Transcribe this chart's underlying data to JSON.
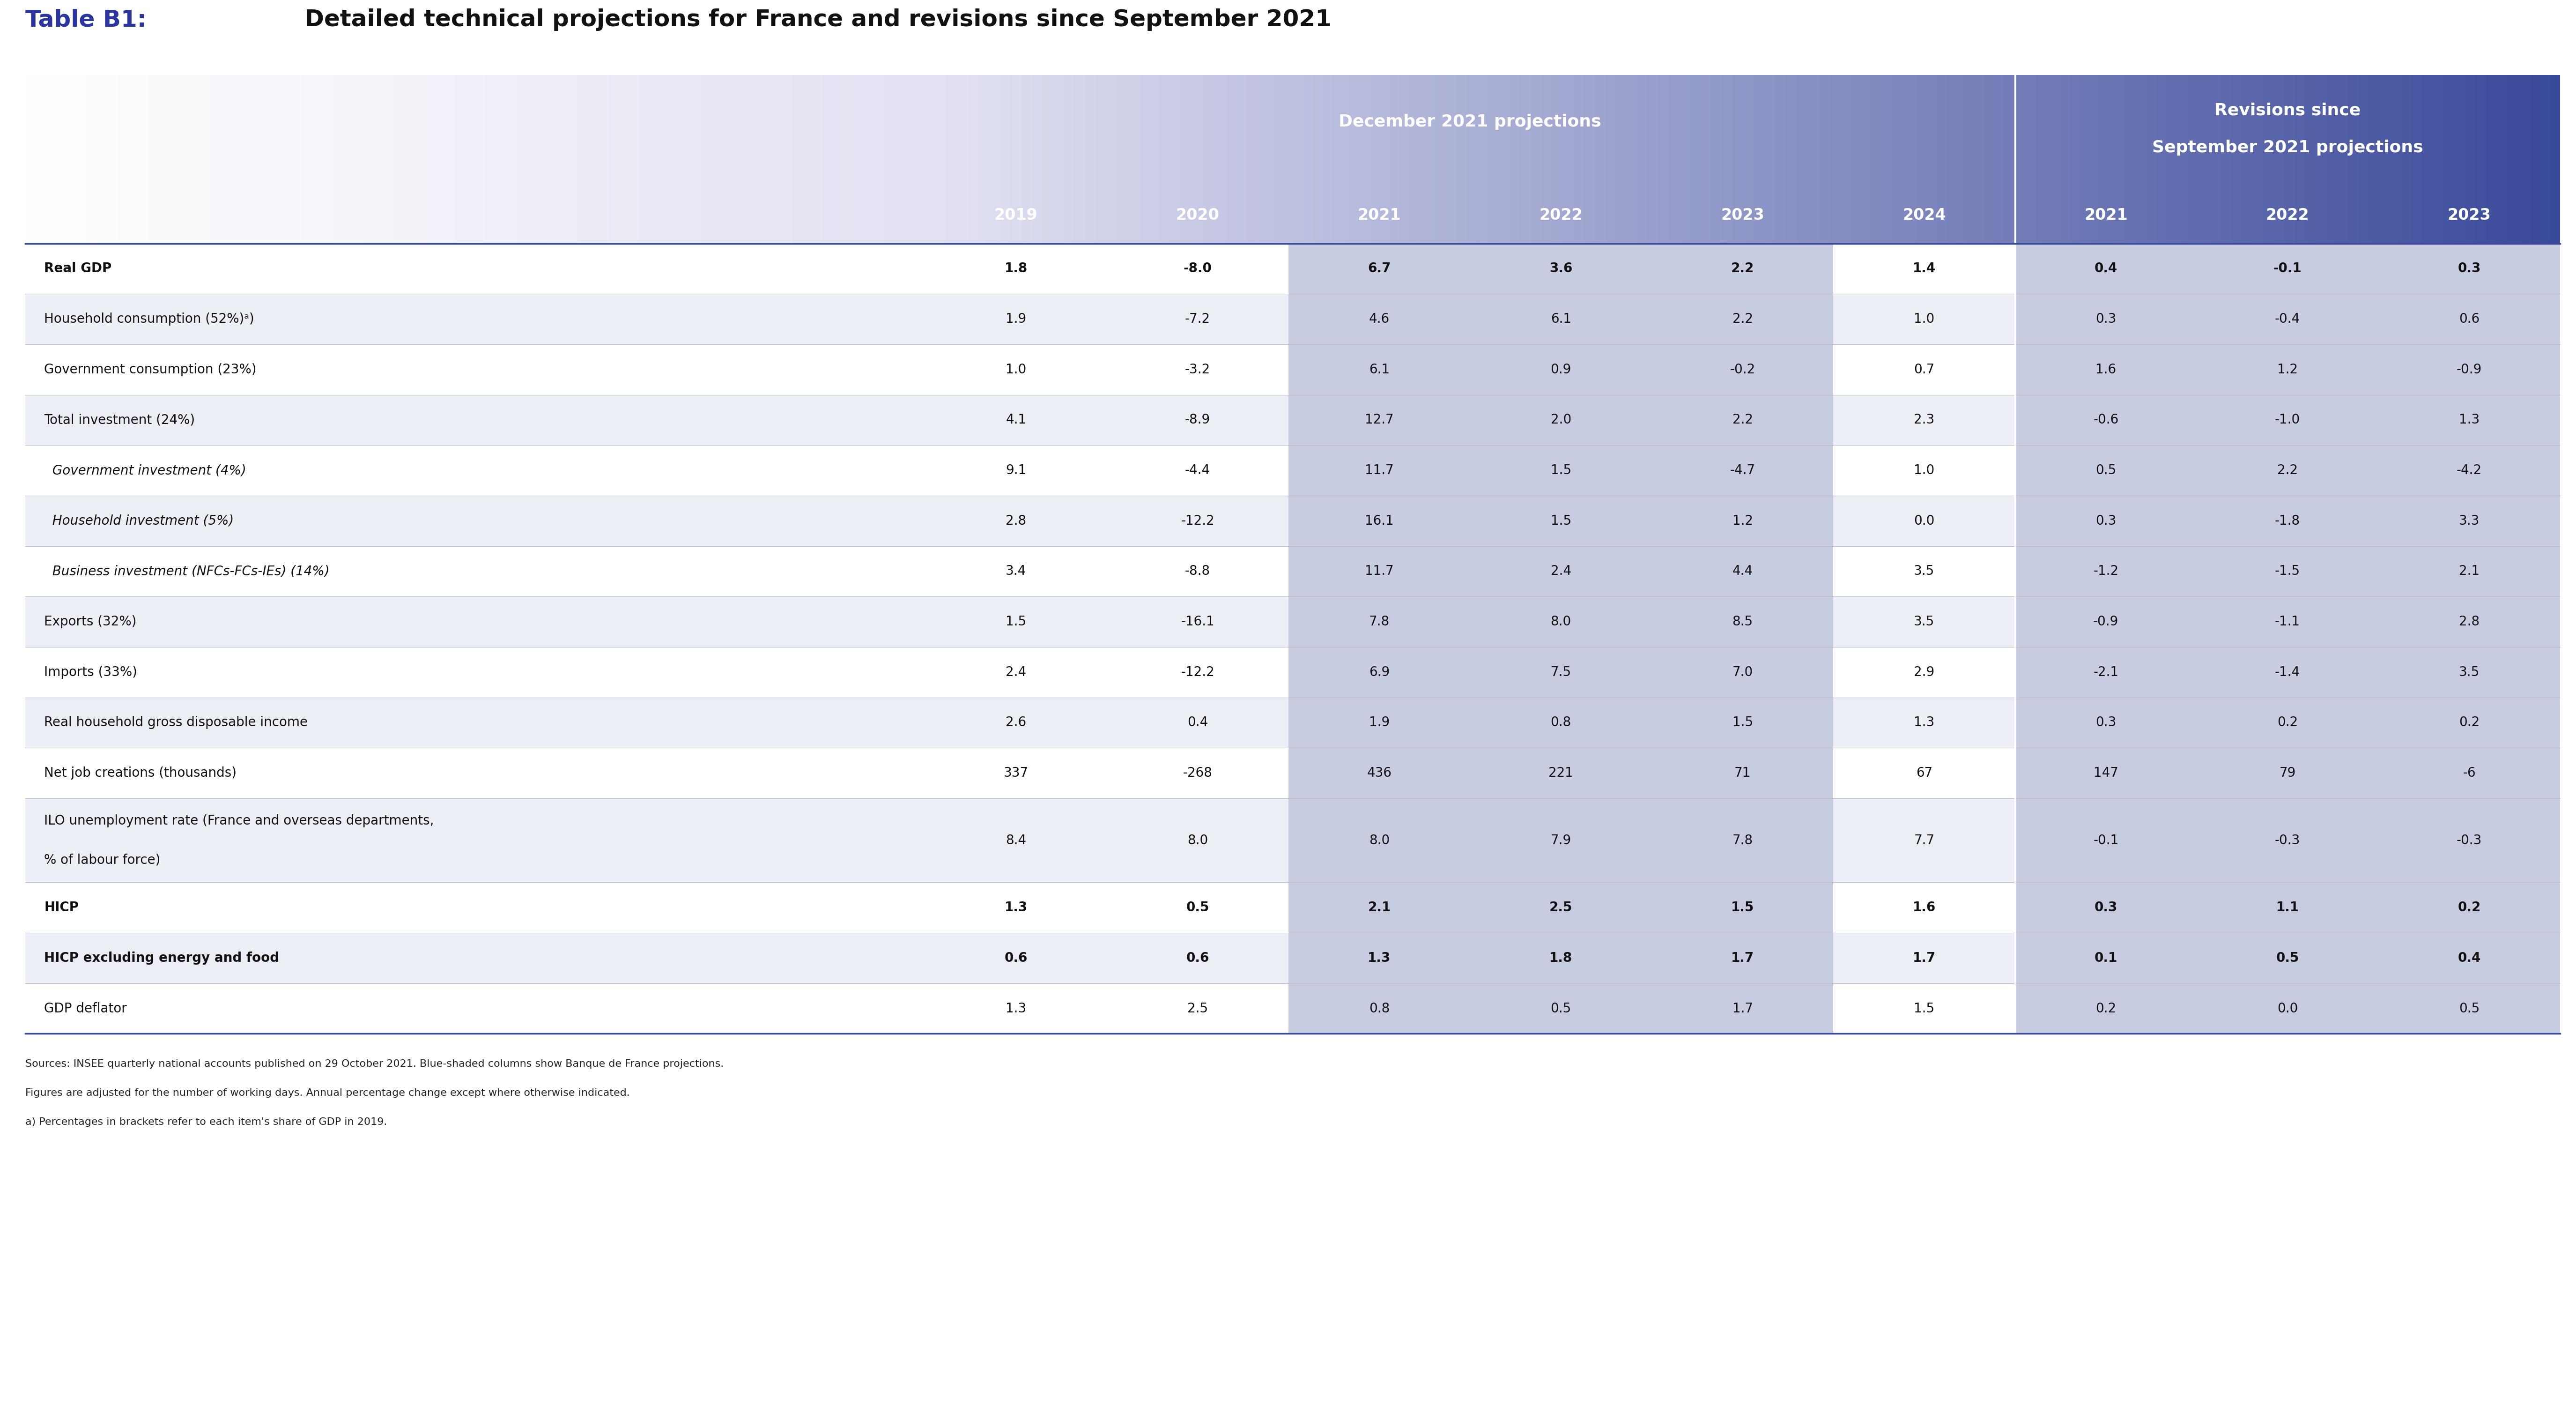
{
  "title_prefix": "Table B1:",
  "title_suffix": " Detailed technical projections for France and revisions since September 2021",
  "col_header1": "December 2021 projections",
  "col_header2_line1": "Revisions since",
  "col_header2_line2": "September 2021 projections",
  "year_headers": [
    "2019",
    "2020",
    "2021",
    "2022",
    "2023",
    "2024",
    "2021",
    "2022",
    "2023"
  ],
  "rows": [
    {
      "label": "Real GDP",
      "bold": true,
      "italic": false,
      "indent": 0,
      "values": [
        "1.8",
        "-8.0",
        "6.7",
        "3.6",
        "2.2",
        "1.4",
        "0.4",
        "-0.1",
        "0.3"
      ]
    },
    {
      "label": "Household consumption (52%)ᵃ)",
      "bold": false,
      "italic": false,
      "indent": 0,
      "values": [
        "1.9",
        "-7.2",
        "4.6",
        "6.1",
        "2.2",
        "1.0",
        "0.3",
        "-0.4",
        "0.6"
      ]
    },
    {
      "label": "Government consumption (23%)",
      "bold": false,
      "italic": false,
      "indent": 0,
      "values": [
        "1.0",
        "-3.2",
        "6.1",
        "0.9",
        "-0.2",
        "0.7",
        "1.6",
        "1.2",
        "-0.9"
      ]
    },
    {
      "label": "Total investment (24%)",
      "bold": false,
      "italic": false,
      "indent": 0,
      "values": [
        "4.1",
        "-8.9",
        "12.7",
        "2.0",
        "2.2",
        "2.3",
        "-0.6",
        "-1.0",
        "1.3"
      ]
    },
    {
      "label": "  Government investment (4%)",
      "bold": false,
      "italic": true,
      "indent": 0,
      "values": [
        "9.1",
        "-4.4",
        "11.7",
        "1.5",
        "-4.7",
        "1.0",
        "0.5",
        "2.2",
        "-4.2"
      ]
    },
    {
      "label": "  Household investment (5%)",
      "bold": false,
      "italic": true,
      "indent": 0,
      "values": [
        "2.8",
        "-12.2",
        "16.1",
        "1.5",
        "1.2",
        "0.0",
        "0.3",
        "-1.8",
        "3.3"
      ]
    },
    {
      "label": "  Business investment (NFCs-FCs-IEs) (14%)",
      "bold": false,
      "italic": true,
      "indent": 0,
      "values": [
        "3.4",
        "-8.8",
        "11.7",
        "2.4",
        "4.4",
        "3.5",
        "-1.2",
        "-1.5",
        "2.1"
      ]
    },
    {
      "label": "Exports (32%)",
      "bold": false,
      "italic": false,
      "indent": 0,
      "values": [
        "1.5",
        "-16.1",
        "7.8",
        "8.0",
        "8.5",
        "3.5",
        "-0.9",
        "-1.1",
        "2.8"
      ]
    },
    {
      "label": "Imports (33%)",
      "bold": false,
      "italic": false,
      "indent": 0,
      "values": [
        "2.4",
        "-12.2",
        "6.9",
        "7.5",
        "7.0",
        "2.9",
        "-2.1",
        "-1.4",
        "3.5"
      ]
    },
    {
      "label": "Real household gross disposable income",
      "bold": false,
      "italic": false,
      "indent": 0,
      "values": [
        "2.6",
        "0.4",
        "1.9",
        "0.8",
        "1.5",
        "1.3",
        "0.3",
        "0.2",
        "0.2"
      ]
    },
    {
      "label": "Net job creations (thousands)",
      "bold": false,
      "italic": false,
      "indent": 0,
      "values": [
        "337",
        "-268",
        "436",
        "221",
        "71",
        "67",
        "147",
        "79",
        "-6"
      ]
    },
    {
      "label": "ILO unemployment rate (France and overseas departments,\n% of labour force)",
      "bold": false,
      "italic": false,
      "indent": 0,
      "values": [
        "8.4",
        "8.0",
        "8.0",
        "7.9",
        "7.8",
        "7.7",
        "-0.1",
        "-0.3",
        "-0.3"
      ]
    },
    {
      "label": "HICP",
      "bold": true,
      "italic": false,
      "indent": 0,
      "values": [
        "1.3",
        "0.5",
        "2.1",
        "2.5",
        "1.5",
        "1.6",
        "0.3",
        "1.1",
        "0.2"
      ]
    },
    {
      "label": "HICP excluding energy and food",
      "bold": true,
      "italic": false,
      "indent": 0,
      "values": [
        "0.6",
        "0.6",
        "1.3",
        "1.8",
        "1.7",
        "1.7",
        "0.1",
        "0.5",
        "0.4"
      ]
    },
    {
      "label": "GDP deflator",
      "bold": false,
      "italic": false,
      "indent": 0,
      "values": [
        "1.3",
        "2.5",
        "0.8",
        "0.5",
        "1.7",
        "1.5",
        "0.2",
        "0.0",
        "0.5"
      ]
    }
  ],
  "footnote1": "Sources: INSEE quarterly national accounts published on 29 October 2021. Blue-shaded columns show Banque de France projections.",
  "footnote2": "Figures are adjusted for the number of working days. Annual percentage change except where otherwise indicated.",
  "footnote3": "a) Percentages in brackets refer to each item's share of GDP in 2019.",
  "title_color": "#111111",
  "table_prefix_color": "#2b35a0",
  "header_bg_deep": "#3a4a9a",
  "header_text_color": "#ffffff",
  "shade_col_color": "#c8cce0",
  "alt_row_color": "#eceef5",
  "white_row_color": "#ffffff",
  "border_color_top": "#3a4a9a",
  "border_color_bottom": "#3a4a9a",
  "divider_color": "#3a4a9a",
  "footnote_color": "#222222"
}
